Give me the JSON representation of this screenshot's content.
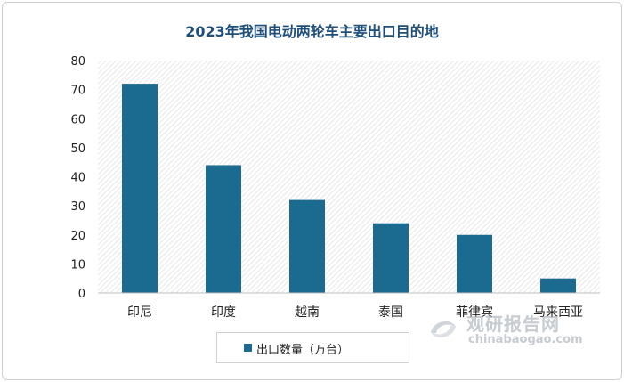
{
  "chart_data": {
    "type": "bar",
    "title": "2023年我国电动两轮车主要出口目的地",
    "categories": [
      "印尼",
      "印度",
      "越南",
      "泰国",
      "菲律宾",
      "马来西亚"
    ],
    "series": [
      {
        "name": "出口数量（万台）",
        "values": [
          72,
          44,
          32,
          24,
          20,
          5
        ]
      }
    ],
    "ylim": [
      0,
      80
    ],
    "yticks": [
      0,
      10,
      20,
      30,
      40,
      50,
      60,
      70,
      80
    ],
    "grid": false,
    "legend": "bottom",
    "colors": {
      "bar": "#1b6a8f",
      "hatch": "#e2e2e2",
      "axis": "#bfbfbf",
      "title": "#1f4e79"
    }
  },
  "watermark": {
    "cn": "观研报告网",
    "en": "chinabaogao.com",
    "icon": "swirl-logo-icon"
  }
}
